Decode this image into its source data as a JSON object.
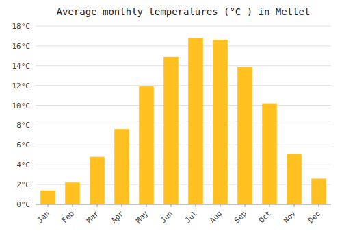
{
  "chart_data": {
    "type": "bar",
    "title": "Average monthly temperatures (°C ) in Mettet",
    "categories": [
      "Jan",
      "Feb",
      "Mar",
      "Apr",
      "May",
      "Jun",
      "Jul",
      "Aug",
      "Sep",
      "Oct",
      "Nov",
      "Dec"
    ],
    "values": [
      1.4,
      2.2,
      4.8,
      7.6,
      11.9,
      14.9,
      16.8,
      16.6,
      13.9,
      10.2,
      5.1,
      2.6
    ],
    "color": "#FFC020",
    "ylim": [
      0,
      18
    ],
    "yticks": [
      {
        "value": 0,
        "label": "0°C"
      },
      {
        "value": 2,
        "label": "2°C"
      },
      {
        "value": 4,
        "label": "4°C"
      },
      {
        "value": 6,
        "label": "6°C"
      },
      {
        "value": 8,
        "label": "8°C"
      },
      {
        "value": 10,
        "label": "10°C"
      },
      {
        "value": 12,
        "label": "12°C"
      },
      {
        "value": 14,
        "label": "14°C"
      },
      {
        "value": 16,
        "label": "16°C"
      },
      {
        "value": 18,
        "label": "18°C"
      }
    ],
    "grid": true
  }
}
